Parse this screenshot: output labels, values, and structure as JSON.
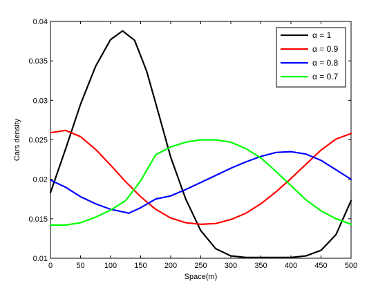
{
  "chart_data": {
    "type": "line",
    "xlabel": "Space(m)",
    "ylabel": "Cars density",
    "xlim": [
      0,
      500
    ],
    "ylim": [
      0.01,
      0.04
    ],
    "xticks": [
      0,
      50,
      100,
      150,
      200,
      250,
      300,
      350,
      400,
      450,
      500
    ],
    "xtick_labels": [
      "0",
      "50",
      "100",
      "150",
      "200",
      "250",
      "300",
      "350",
      "400",
      "450",
      "500"
    ],
    "yticks": [
      0.01,
      0.015,
      0.02,
      0.025,
      0.03,
      0.035,
      0.04
    ],
    "ytick_labels": [
      "0.01",
      "0.015",
      "0.02",
      "0.025",
      "0.03",
      "0.035",
      "0.04"
    ],
    "grid": false,
    "legend_position": "top-right",
    "series": [
      {
        "name": "α = 1",
        "color": "#000000",
        "x": [
          0,
          25,
          50,
          75,
          100,
          120,
          140,
          160,
          180,
          200,
          225,
          250,
          275,
          300,
          325,
          350,
          375,
          400,
          425,
          450,
          475,
          500
        ],
        "y": [
          0.0183,
          0.0238,
          0.0295,
          0.0343,
          0.0377,
          0.0388,
          0.0376,
          0.0337,
          0.0283,
          0.0228,
          0.0175,
          0.0135,
          0.0112,
          0.0103,
          0.0101,
          0.0101,
          0.0101,
          0.0101,
          0.0103,
          0.011,
          0.013,
          0.0173
        ]
      },
      {
        "name": "α = 0.9",
        "color": "#ff0000",
        "x": [
          0,
          25,
          50,
          75,
          100,
          125,
          150,
          175,
          200,
          225,
          250,
          275,
          300,
          325,
          350,
          375,
          400,
          425,
          450,
          475,
          500
        ],
        "y": [
          0.0259,
          0.0262,
          0.0254,
          0.0238,
          0.0218,
          0.0197,
          0.0178,
          0.0162,
          0.0151,
          0.0145,
          0.0143,
          0.0144,
          0.0149,
          0.0157,
          0.0169,
          0.0184,
          0.0201,
          0.0219,
          0.0237,
          0.0251,
          0.0258
        ]
      },
      {
        "name": "α = 0.8",
        "color": "#0000ff",
        "x": [
          0,
          25,
          50,
          75,
          100,
          125,
          130,
          150,
          175,
          200,
          225,
          250,
          275,
          300,
          325,
          350,
          375,
          400,
          425,
          450,
          475,
          500
        ],
        "y": [
          0.0199,
          0.019,
          0.0178,
          0.0169,
          0.0162,
          0.0158,
          0.0157,
          0.0164,
          0.0175,
          0.0179,
          0.0187,
          0.0196,
          0.0205,
          0.0214,
          0.0222,
          0.0229,
          0.0234,
          0.0235,
          0.0232,
          0.0224,
          0.0212,
          0.02
        ]
      },
      {
        "name": "α = 0.7",
        "color": "#00ff00",
        "x": [
          0,
          25,
          50,
          75,
          100,
          125,
          150,
          175,
          200,
          225,
          250,
          275,
          300,
          325,
          350,
          375,
          400,
          425,
          450,
          475,
          500
        ],
        "y": [
          0.0142,
          0.0142,
          0.0145,
          0.0152,
          0.0161,
          0.0173,
          0.0198,
          0.0231,
          0.0241,
          0.0247,
          0.025,
          0.025,
          0.0247,
          0.0239,
          0.0227,
          0.021,
          0.0192,
          0.0174,
          0.016,
          0.015,
          0.0143
        ]
      }
    ]
  }
}
